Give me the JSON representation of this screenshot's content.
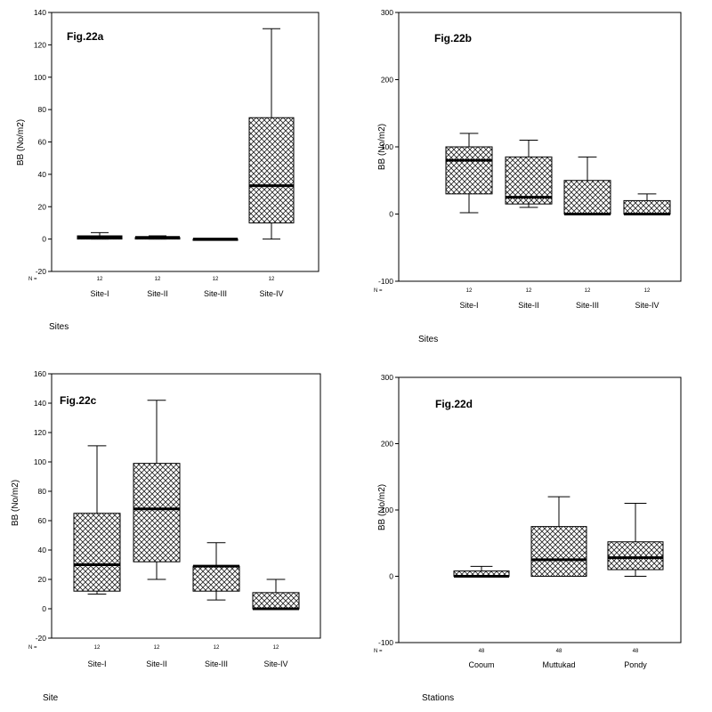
{
  "chart_data": [
    {
      "type": "boxplot",
      "panel_label": "Fig.22a",
      "ylabel": "BB  (No/m2)",
      "xlabel": "Sites",
      "n_prefix": "N =",
      "ylim": [
        -20,
        140
      ],
      "yticks": [
        -20,
        0,
        20,
        40,
        60,
        80,
        100,
        120,
        140
      ],
      "categories": [
        "Site-I",
        "Site-II",
        "Site-III",
        "Site-IV"
      ],
      "n": [
        "12",
        "12",
        "12",
        "12"
      ],
      "boxes": [
        {
          "min": 0,
          "q1": 0,
          "median": 1,
          "q3": 2,
          "max": 4
        },
        {
          "min": 0,
          "q1": 0,
          "median": 1,
          "q3": 1,
          "max": 2
        },
        {
          "min": 0,
          "q1": 0,
          "median": 0,
          "q3": 0,
          "max": 0
        },
        {
          "min": 0,
          "q1": 10,
          "median": 33,
          "q3": 75,
          "max": 130
        }
      ]
    },
    {
      "type": "boxplot",
      "panel_label": "Fig.22b",
      "ylabel": "BB  (No/m2)",
      "xlabel": "Sites",
      "n_prefix": "N =",
      "ylim": [
        -100,
        300
      ],
      "yticks": [
        -100,
        0,
        100,
        200,
        300
      ],
      "categories": [
        "Site-I",
        "Site-II",
        "Site-III",
        "Site-IV"
      ],
      "n": [
        "12",
        "12",
        "12",
        "12"
      ],
      "boxes": [
        {
          "min": 2,
          "q1": 30,
          "median": 80,
          "q3": 100,
          "max": 120
        },
        {
          "min": 10,
          "q1": 15,
          "median": 25,
          "q3": 85,
          "max": 110
        },
        {
          "min": 0,
          "q1": 0,
          "median": 0,
          "q3": 50,
          "max": 85
        },
        {
          "min": 0,
          "q1": 0,
          "median": 0,
          "q3": 20,
          "max": 30
        }
      ]
    },
    {
      "type": "boxplot",
      "panel_label": "Fig.22c",
      "ylabel": "BB  (No/m2)",
      "xlabel": "Site",
      "n_prefix": "N =",
      "ylim": [
        -20,
        160
      ],
      "yticks": [
        -20,
        0,
        20,
        40,
        60,
        80,
        100,
        120,
        140,
        160
      ],
      "categories": [
        "Site-I",
        "Site-II",
        "Site-III",
        "Site-IV"
      ],
      "n": [
        "12",
        "12",
        "12",
        "12"
      ],
      "boxes": [
        {
          "min": 10,
          "q1": 12,
          "median": 30,
          "q3": 65,
          "max": 111
        },
        {
          "min": 20,
          "q1": 32,
          "median": 68,
          "q3": 99,
          "max": 142
        },
        {
          "min": 6,
          "q1": 12,
          "median": 29,
          "q3": 29,
          "max": 45
        },
        {
          "min": 0,
          "q1": 0,
          "median": 0,
          "q3": 11,
          "max": 20
        }
      ]
    },
    {
      "type": "boxplot",
      "panel_label": "Fig.22d",
      "ylabel": "BB  (No/m2)",
      "xlabel": "Stations",
      "n_prefix": "N =",
      "ylim": [
        -100,
        300
      ],
      "yticks": [
        -100,
        0,
        100,
        200,
        300
      ],
      "categories": [
        "Cooum",
        "Muttukad",
        "Pondy"
      ],
      "n": [
        "48",
        "48",
        "48"
      ],
      "boxes": [
        {
          "min": 0,
          "q1": 0,
          "median": 0,
          "q3": 8,
          "max": 15
        },
        {
          "min": 0,
          "q1": 0,
          "median": 25,
          "q3": 75,
          "max": 120
        },
        {
          "min": 0,
          "q1": 10,
          "median": 28,
          "q3": 52,
          "max": 110
        }
      ]
    }
  ]
}
